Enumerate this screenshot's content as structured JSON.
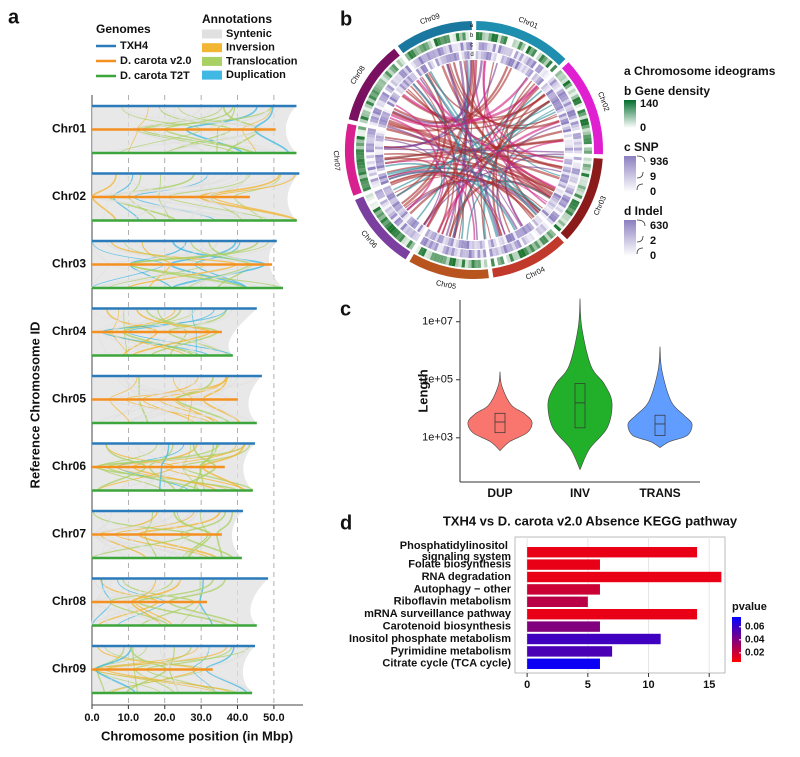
{
  "chart_data": [
    {
      "type": "synteny",
      "panel": "a",
      "genomes_title": "Genomes",
      "annotations_title": "Annotations",
      "categories": [
        "Chr01",
        "Chr02",
        "Chr03",
        "Chr04",
        "Chr05",
        "Chr06",
        "Chr07",
        "Chr08",
        "Chr09"
      ],
      "series": [
        {
          "name": "TXH4",
          "color": "#2b7bba",
          "values": [
            56.2,
            57.0,
            50.8,
            45.3,
            46.7,
            44.8,
            41.5,
            48.4,
            44.8
          ]
        },
        {
          "name": "D. carota v2.0",
          "color": "#f39020",
          "values": [
            50.5,
            43.4,
            49.5,
            35.7,
            40.1,
            36.5,
            35.7,
            31.6,
            33.2
          ]
        },
        {
          "name": "D. carota T2T",
          "color": "#3ca63c",
          "values": [
            56.2,
            56.3,
            52.5,
            38.7,
            45.3,
            44.2,
            41.2,
            45.3,
            44.0
          ]
        }
      ],
      "annotations": [
        {
          "name": "Syntenic",
          "color": "#e0e0e0"
        },
        {
          "name": "Inversion",
          "color": "#f2b632"
        },
        {
          "name": "Translocation",
          "color": "#a9d062"
        },
        {
          "name": "Duplication",
          "color": "#3fb8e3"
        }
      ],
      "xlim": [
        0,
        58
      ],
      "xticks": [
        {
          "value": 0,
          "label": "0.0"
        },
        {
          "value": 10,
          "label": "10.0"
        },
        {
          "value": 20,
          "label": "20.0"
        },
        {
          "value": 30,
          "label": "30.0"
        },
        {
          "value": 40,
          "label": "40.0"
        },
        {
          "value": 50,
          "label": "50.0"
        }
      ],
      "xlabel": "Chromosome position (in Mbp)",
      "ylabel": "Reference Chromosome ID"
    },
    {
      "type": "circos",
      "panel": "b",
      "categories": [
        "Chr01",
        "Chr02",
        "Chr03",
        "Chr04",
        "Chr05",
        "Chr06",
        "Chr07",
        "Chr08",
        "Chr09"
      ],
      "colors": [
        "#1f8fb0",
        "#e020d0",
        "#8b1a1a",
        "#c0392b",
        "#b8541e",
        "#7b3fa0",
        "#d8208f",
        "#7a1060",
        "#1a78a0"
      ],
      "track_labels": [
        "a",
        "b",
        "c",
        "d"
      ],
      "legend": {
        "ideogram": "a Chromosome ideograms",
        "gene_density": {
          "title": "b Gene density",
          "ticks": [
            140,
            0
          ]
        },
        "snp": {
          "title": "c SNP",
          "ticks": [
            936,
            9,
            0
          ]
        },
        "indel": {
          "title": "d Indel",
          "ticks": [
            630,
            2,
            0
          ]
        }
      }
    },
    {
      "type": "violin",
      "panel": "c",
      "categories": [
        "DUP",
        "INV",
        "TRANS"
      ],
      "colors": [
        "#f8766d",
        "#22b02a",
        "#619cff"
      ],
      "ylabel": "Length",
      "log_scale": true,
      "ylim": [
        30,
        56000000
      ],
      "yticks": [
        {
          "value": 1000,
          "label": "1e+03"
        },
        {
          "value": 100000,
          "label": "1e+05"
        },
        {
          "value": 10000000,
          "label": "1e+07"
        }
      ],
      "min": [
        360,
        80,
        460
      ],
      "q1": [
        1500,
        2200,
        1200
      ],
      "median": [
        3500,
        16000,
        3000
      ],
      "q3": [
        7000,
        74000,
        6000
      ],
      "max": [
        190000,
        63000000,
        1400000
      ]
    },
    {
      "type": "hbar",
      "panel": "d",
      "title": "TXH4 vs D. carota v2.0 Absence KEGG pathway",
      "categories": [
        "Phosphatidylinositol signaling system",
        "Folate biosynthesis",
        "RNA degradation",
        "Autophagy − other",
        "Riboflavin metabolism",
        "mRNA surveillance pathway",
        "Carotenoid biosynthesis",
        "Inositol phosphate metabolism",
        "Pyrimidine metabolism",
        "Citrate cycle (TCA cycle)"
      ],
      "values": [
        14,
        6,
        16,
        6,
        5,
        14,
        6,
        11,
        7,
        6
      ],
      "pvalues": [
        0.012,
        0.012,
        0.012,
        0.02,
        0.025,
        0.012,
        0.04,
        0.058,
        0.055,
        0.072
      ],
      "colorbar_title": "pvalue",
      "clim": [
        0.006,
        0.075
      ],
      "cticks": [
        0.02,
        0.04,
        0.06
      ],
      "low_color": "#ff0000",
      "high_color": "#0000ff",
      "xlim": [
        -1,
        16.3
      ],
      "xticks": [
        0,
        5,
        10,
        15
      ],
      "grid": true
    }
  ]
}
